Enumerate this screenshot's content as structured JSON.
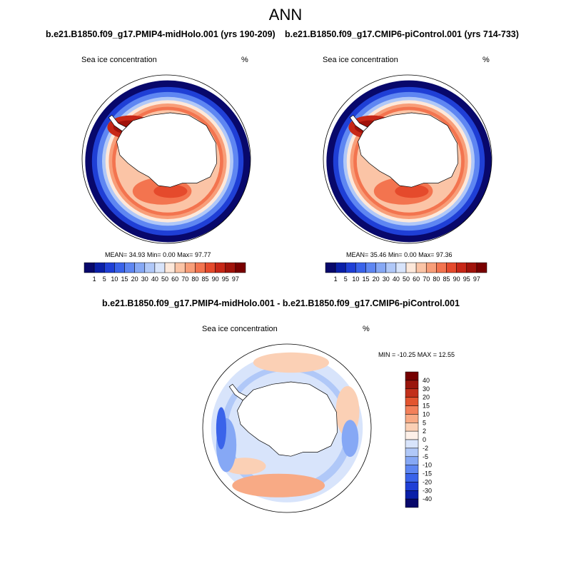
{
  "page": {
    "title": "ANN",
    "case1_title": "b.e21.B1850.f09_g17.PMIP4-midHolo.001 (yrs 190-209)",
    "case2_title": "b.e21.B1850.f09_g17.CMIP6-piControl.001 (yrs 714-733)",
    "diff_title": "b.e21.B1850.f09_g17.PMIP4-midHolo.001 - b.e21.B1850.f09_g17.CMIP6-piControl.001"
  },
  "colors": {
    "abs_scale": [
      "#08086b",
      "#0a1fa8",
      "#1f3fd6",
      "#3a63ea",
      "#5e86f2",
      "#86a8f5",
      "#b0c8f8",
      "#d8e4fb",
      "#fde8da",
      "#fbc4a6",
      "#f89e79",
      "#f3744f",
      "#e54a2c",
      "#c72717",
      "#a1130b",
      "#790000"
    ],
    "diff_scale": [
      "#08086b",
      "#0a1fa8",
      "#1f3fd6",
      "#3a63ea",
      "#5e86f2",
      "#86a8f5",
      "#b0c8f8",
      "#d8e4fb",
      "#fdf0e8",
      "#fbd0b5",
      "#f8aa85",
      "#f3805a",
      "#e3552f",
      "#c2301b",
      "#9a160c",
      "#750000"
    ]
  },
  "chart_data": [
    {
      "type": "heatmap",
      "panel": "left",
      "projection": "south-polar-stereographic",
      "title": "Sea ice concentration",
      "units": "%",
      "stats": {
        "mean_label": "MEAN=",
        "mean": "34.93",
        "min_label": "Min=",
        "min": "0.00",
        "max_label": "Max=",
        "max": "97.77"
      },
      "levels": [
        "1",
        "5",
        "10",
        "15",
        "20",
        "30",
        "40",
        "50",
        "60",
        "70",
        "80",
        "85",
        "90",
        "95",
        "97"
      ]
    },
    {
      "type": "heatmap",
      "panel": "right",
      "projection": "south-polar-stereographic",
      "title": "Sea ice concentration",
      "units": "%",
      "stats": {
        "mean_label": "MEAN=",
        "mean": "35.46",
        "min_label": "Min=",
        "min": "0.00",
        "max_label": "Max=",
        "max": "97.36"
      },
      "levels": [
        "1",
        "5",
        "10",
        "15",
        "20",
        "30",
        "40",
        "50",
        "60",
        "70",
        "80",
        "85",
        "90",
        "95",
        "97"
      ]
    },
    {
      "type": "heatmap",
      "panel": "difference",
      "projection": "south-polar-stereographic",
      "title": "Sea ice concentration",
      "units": "%",
      "minmax_label": "MIN = -10.25 MAX =  12.55",
      "levels": [
        "40",
        "30",
        "20",
        "15",
        "10",
        "5",
        "2",
        "0",
        "-2",
        "-5",
        "-10",
        "-15",
        "-20",
        "-30",
        "-40"
      ]
    }
  ]
}
